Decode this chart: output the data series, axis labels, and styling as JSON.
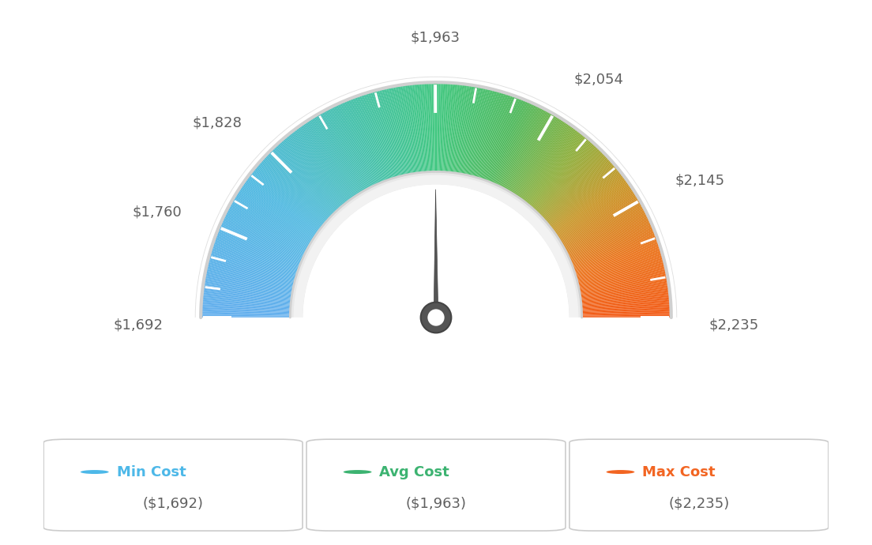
{
  "min_val": 1692,
  "avg_val": 1963,
  "max_val": 2235,
  "tick_values": [
    1692,
    1760,
    1828,
    1963,
    2054,
    2145,
    2235
  ],
  "legend_items": [
    {
      "label": "Min Cost",
      "value": "($1,692)",
      "color": "#4db8e8"
    },
    {
      "label": "Avg Cost",
      "value": "($1,963)",
      "color": "#3cb371"
    },
    {
      "label": "Max Cost",
      "value": "($2,235)",
      "color": "#f26522"
    }
  ],
  "bg_color": "#ffffff",
  "text_color": "#606060",
  "border_color": "#cccccc",
  "needle_color": "#555555",
  "color_stops": [
    [
      0.0,
      [
        0.38,
        0.68,
        0.93
      ]
    ],
    [
      0.2,
      [
        0.3,
        0.72,
        0.88
      ]
    ],
    [
      0.38,
      [
        0.25,
        0.75,
        0.65
      ]
    ],
    [
      0.5,
      [
        0.25,
        0.78,
        0.5
      ]
    ],
    [
      0.62,
      [
        0.3,
        0.72,
        0.35
      ]
    ],
    [
      0.72,
      [
        0.55,
        0.68,
        0.22
      ]
    ],
    [
      0.8,
      [
        0.78,
        0.58,
        0.14
      ]
    ],
    [
      0.9,
      [
        0.92,
        0.45,
        0.1
      ]
    ],
    [
      1.0,
      [
        0.95,
        0.35,
        0.08
      ]
    ]
  ]
}
